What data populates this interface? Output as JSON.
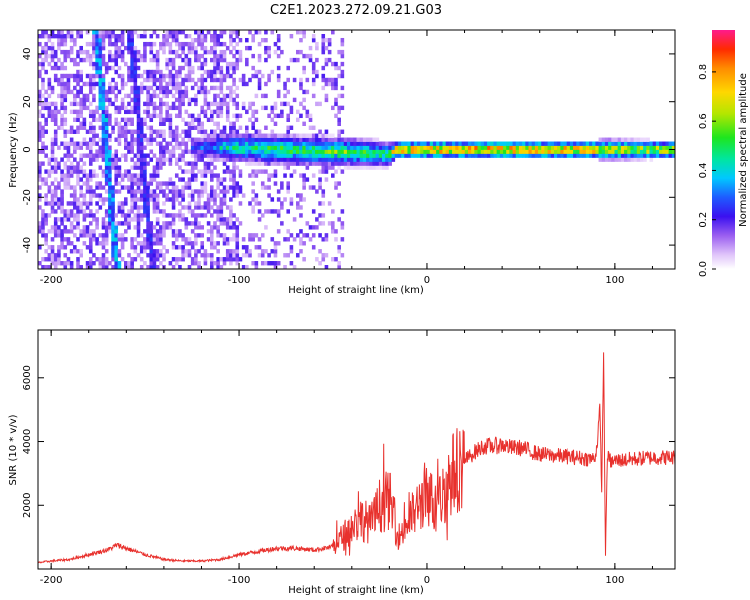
{
  "title": "C2E1.2023.272.09.21.G03",
  "colors": {
    "snr_line": "#e8312d",
    "axis": "#000000",
    "colormap": [
      "#ffffff",
      "#e6cdfa",
      "#c79af5",
      "#9a5ef0",
      "#6e1fe6",
      "#3a10f0",
      "#1e5cff",
      "#00c8ff",
      "#00e6a0",
      "#1ee61e",
      "#b4e600",
      "#ffd700",
      "#ff8c00",
      "#ff2a00",
      "#ff1a8c"
    ]
  },
  "chart_data": [
    {
      "type": "heatmap",
      "xlabel": "Height of straight line (km)",
      "ylabel": "Frequency (Hz)",
      "xlim": [
        -207,
        132
      ],
      "ylim": [
        -50,
        50
      ],
      "xticks": [
        -200,
        -100,
        0,
        100
      ],
      "xtick_labels": [
        "-200",
        "-100",
        "0",
        "100"
      ],
      "yticks": [
        -40,
        -20,
        0,
        20,
        40
      ],
      "ytick_labels": [
        "-40",
        "-20",
        "0",
        "20",
        "40"
      ],
      "colorbar": {
        "label": "Normalized spectral amplitude",
        "range": [
          0,
          0.97
        ],
        "ticks": [
          0.0,
          0.2,
          0.4,
          0.6,
          0.8
        ],
        "tick_labels": [
          "0.0",
          "0.2",
          "0.4",
          "0.6",
          "0.8"
        ]
      },
      "features": {
        "noise_region": {
          "x": [
            -207,
            -45
          ],
          "freq": [
            -50,
            50
          ],
          "amplitude": 0.15
        },
        "diagonal_streaks": [
          {
            "x_start": -176,
            "x_end": -165,
            "freq_start": 50,
            "freq_end": -50,
            "amplitude": 0.3
          },
          {
            "x_start": -158,
            "x_end": -146,
            "freq_start": 50,
            "freq_end": -50,
            "amplitude": 0.2
          }
        ],
        "signal_band": [
          {
            "x": -125,
            "center_freq": 1,
            "halfwidth": 3,
            "amplitude": 0.25
          },
          {
            "x": -105,
            "center_freq": 1,
            "halfwidth": 5,
            "amplitude": 0.45
          },
          {
            "x": -80,
            "center_freq": 0,
            "halfwidth": 5,
            "amplitude": 0.55
          },
          {
            "x": -40,
            "center_freq": -1,
            "halfwidth": 5,
            "amplitude": 0.55
          },
          {
            "x": -20,
            "center_freq": -2,
            "halfwidth": 4,
            "amplitude": 0.5
          },
          {
            "x": -16,
            "center_freq": 0,
            "halfwidth": 2,
            "amplitude": 0.9
          },
          {
            "x": 40,
            "center_freq": 0,
            "halfwidth": 2,
            "amplitude": 0.9
          },
          {
            "x": 90,
            "center_freq": 0,
            "halfwidth": 2,
            "amplitude": 0.85
          },
          {
            "x": 93,
            "center_freq": 0,
            "halfwidth": 3,
            "amplitude": 0.7
          },
          {
            "x": 132,
            "center_freq": 0,
            "halfwidth": 2,
            "amplitude": 0.75
          }
        ]
      }
    },
    {
      "type": "line",
      "xlabel": "Height of straight line (km)",
      "ylabel": "SNR (10 * v/v)",
      "xlim": [
        -207,
        132
      ],
      "ylim": [
        0,
        7500
      ],
      "xticks": [
        -200,
        -100,
        0,
        100
      ],
      "xtick_labels": [
        "-200",
        "-100",
        "0",
        "100"
      ],
      "yticks": [
        2000,
        4000,
        6000
      ],
      "ytick_labels": [
        "2000",
        "4000",
        "6000"
      ],
      "series": [
        {
          "x": [
            -207,
            -200,
            -190,
            -180,
            -170,
            -165,
            -160,
            -150,
            -140,
            -130,
            -120,
            -110,
            -100,
            -90,
            -80,
            -70,
            -60,
            -50,
            -45,
            -40,
            -35,
            -30,
            -25,
            -20,
            -15,
            -10,
            -5,
            0,
            5,
            10,
            15,
            20,
            25,
            30,
            35,
            40,
            45,
            50,
            55,
            60,
            70,
            80,
            88,
            90,
            92,
            93,
            94,
            95,
            96,
            98,
            100,
            110,
            120,
            132
          ],
          "y": [
            200,
            250,
            300,
            450,
            600,
            750,
            650,
            450,
            300,
            250,
            250,
            300,
            450,
            550,
            650,
            650,
            600,
            700,
            1000,
            1300,
            1600,
            1400,
            2000,
            2200,
            1000,
            1500,
            1900,
            2500,
            1800,
            2600,
            3100,
            3400,
            3650,
            3850,
            3850,
            3900,
            3800,
            3800,
            3700,
            3600,
            3550,
            3500,
            3450,
            3600,
            5000,
            2500,
            6800,
            400,
            3600,
            3350,
            3400,
            3450,
            3500,
            3500
          ]
        }
      ]
    }
  ]
}
